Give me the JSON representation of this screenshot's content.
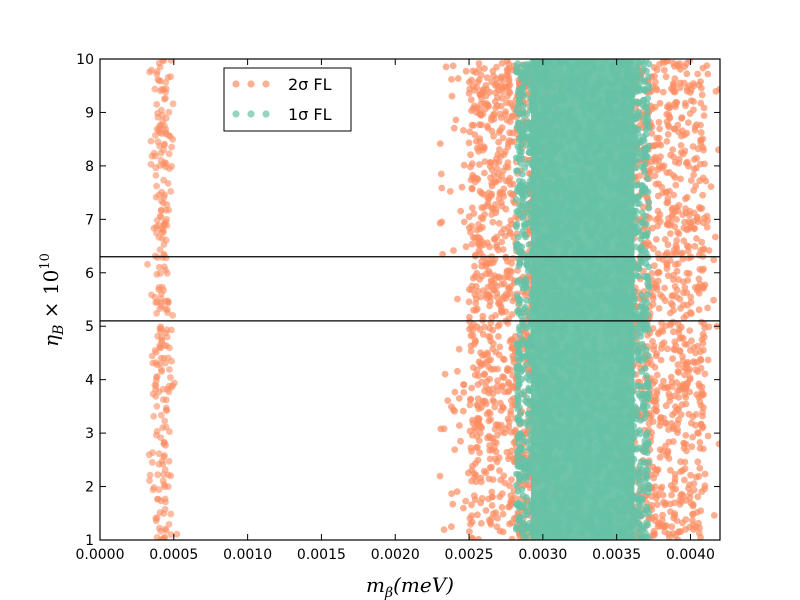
{
  "chart_data": {
    "type": "scatter",
    "xlabel": "mβ(meV)",
    "ylabel": "ηB × 10^10",
    "xlim": [
      0.0,
      0.0042
    ],
    "ylim": [
      1,
      10
    ],
    "xticks": [
      "0.0000",
      "0.0005",
      "0.0010",
      "0.0015",
      "0.0020",
      "0.0025",
      "0.0030",
      "0.0035",
      "0.0040"
    ],
    "yticks": [
      "1",
      "2",
      "3",
      "4",
      "5",
      "6",
      "7",
      "8",
      "9",
      "10"
    ],
    "hlines": [
      6.3,
      5.1
    ],
    "legend": {
      "placement": "upper-left",
      "entries": [
        {
          "label": "2σ FL",
          "color": "#fc8d62"
        },
        {
          "label": "1σ FL",
          "color": "#66c2a5"
        }
      ]
    },
    "series": [
      {
        "name": "2σ FL",
        "color": "#fc8d62",
        "regions": [
          {
            "x": [
              0.0001,
              0.00065
            ],
            "y": [
              1,
              10
            ]
          },
          {
            "x": [
              0.0024,
              0.0042
            ],
            "y": [
              1,
              10
            ]
          }
        ]
      },
      {
        "name": "1σ FL",
        "color": "#66c2a5",
        "regions": [
          {
            "x": [
              0.0028,
              0.0038
            ],
            "y": [
              1,
              10
            ]
          }
        ]
      }
    ]
  }
}
